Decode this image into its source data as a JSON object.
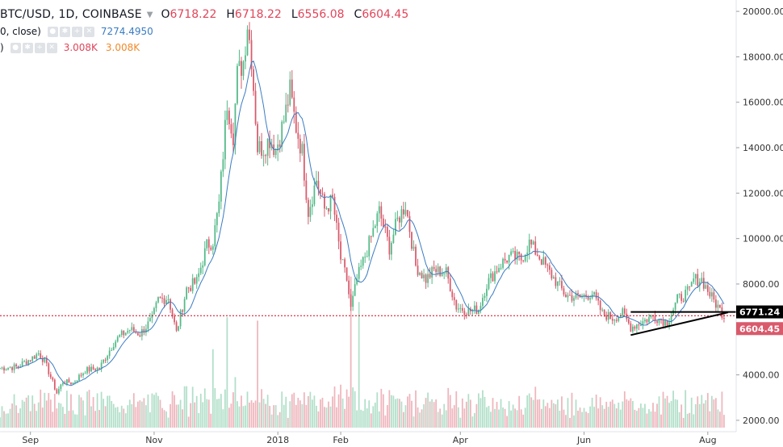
{
  "header": {
    "symbol": "BTC/USD, 1D, COINBASE",
    "open_key": "O",
    "open": "6718.22",
    "high_key": "H",
    "high": "6718.22",
    "low_key": "L",
    "low": "6556.08",
    "close_key": "C",
    "close": "6604.45"
  },
  "ma_indicator": {
    "label": "0, close)",
    "value": "7274.4950"
  },
  "volume_indicator": {
    "label": ")",
    "value1": "3.008K",
    "value2": "3.008K"
  },
  "colors": {
    "up": "#53b987",
    "down": "#d95a6b",
    "ma": "#3a7cc2",
    "line": "#000000",
    "price_line": "#d0021b"
  },
  "chart_data": {
    "type": "candlestick",
    "y_range": [
      1500,
      20500
    ],
    "x_range": [
      "2017-08-17",
      "2018-08-15"
    ],
    "y_ticks": [
      "2000.00",
      "4000.00",
      "6000.00",
      "8000.00",
      "10000.00",
      "12000.00",
      "14000.00",
      "16000.00",
      "18000.00",
      "20000.00"
    ],
    "x_ticks": [
      {
        "label": "Sep",
        "date": "2017-09-01"
      },
      {
        "label": "Nov",
        "date": "2017-11-01"
      },
      {
        "label": "2018",
        "date": "2018-01-01"
      },
      {
        "label": "Feb",
        "date": "2018-02-01"
      },
      {
        "label": "Apr",
        "date": "2018-04-01"
      },
      {
        "label": "Jun",
        "date": "2018-06-01"
      },
      {
        "label": "Aug",
        "date": "2018-08-01"
      }
    ],
    "close_path": [
      [
        "2017-08-17",
        4300
      ],
      [
        "2017-08-25",
        4350
      ],
      [
        "2017-09-01",
        4700
      ],
      [
        "2017-09-05",
        4950
      ],
      [
        "2017-09-08",
        4600
      ],
      [
        "2017-09-14",
        3200
      ],
      [
        "2017-09-17",
        3700
      ],
      [
        "2017-09-22",
        3650
      ],
      [
        "2017-09-28",
        4200
      ],
      [
        "2017-10-05",
        4300
      ],
      [
        "2017-10-12",
        5400
      ],
      [
        "2017-10-15",
        5700
      ],
      [
        "2017-10-20",
        6000
      ],
      [
        "2017-10-25",
        5800
      ],
      [
        "2017-10-31",
        6450
      ],
      [
        "2017-11-03",
        7300
      ],
      [
        "2017-11-08",
        7400
      ],
      [
        "2017-11-12",
        5850
      ],
      [
        "2017-11-17",
        7800
      ],
      [
        "2017-11-22",
        8100
      ],
      [
        "2017-11-27",
        9700
      ],
      [
        "2017-11-30",
        9900
      ],
      [
        "2017-12-03",
        11500
      ],
      [
        "2017-12-07",
        16000
      ],
      [
        "2017-12-10",
        14600
      ],
      [
        "2017-12-12",
        17200
      ],
      [
        "2017-12-15",
        17800
      ],
      [
        "2017-12-17",
        19500
      ],
      [
        "2017-12-19",
        18000
      ],
      [
        "2017-12-22",
        14000
      ],
      [
        "2017-12-25",
        14000
      ],
      [
        "2017-12-28",
        14400
      ],
      [
        "2017-12-31",
        13900
      ],
      [
        "2018-01-04",
        15200
      ],
      [
        "2018-01-07",
        16500
      ],
      [
        "2018-01-10",
        14900
      ],
      [
        "2018-01-13",
        13800
      ],
      [
        "2018-01-16",
        11200
      ],
      [
        "2018-01-20",
        12600
      ],
      [
        "2018-01-24",
        11300
      ],
      [
        "2018-01-28",
        11700
      ],
      [
        "2018-02-01",
        9100
      ],
      [
        "2018-02-04",
        8200
      ],
      [
        "2018-02-06",
        6900
      ],
      [
        "2018-02-09",
        8200
      ],
      [
        "2018-02-14",
        9500
      ],
      [
        "2018-02-20",
        11200
      ],
      [
        "2018-02-25",
        9600
      ],
      [
        "2018-03-01",
        10800
      ],
      [
        "2018-03-05",
        11500
      ],
      [
        "2018-03-10",
        8800
      ],
      [
        "2018-03-15",
        8200
      ],
      [
        "2018-03-19",
        8600
      ],
      [
        "2018-03-25",
        8500
      ],
      [
        "2018-03-30",
        7000
      ],
      [
        "2018-04-05",
        6800
      ],
      [
        "2018-04-10",
        6900
      ],
      [
        "2018-04-14",
        8000
      ],
      [
        "2018-04-20",
        8800
      ],
      [
        "2018-04-25",
        9200
      ],
      [
        "2018-05-01",
        9100
      ],
      [
        "2018-05-05",
        9800
      ],
      [
        "2018-05-10",
        9200
      ],
      [
        "2018-05-15",
        8500
      ],
      [
        "2018-05-23",
        7500
      ],
      [
        "2018-05-30",
        7400
      ],
      [
        "2018-06-05",
        7600
      ],
      [
        "2018-06-10",
        6700
      ],
      [
        "2018-06-15",
        6500
      ],
      [
        "2018-06-20",
        6700
      ],
      [
        "2018-06-24",
        6100
      ],
      [
        "2018-06-29",
        6300
      ],
      [
        "2018-07-05",
        6600
      ],
      [
        "2018-07-12",
        6300
      ],
      [
        "2018-07-17",
        7300
      ],
      [
        "2018-07-23",
        7700
      ],
      [
        "2018-07-25",
        8200
      ],
      [
        "2018-07-29",
        8200
      ],
      [
        "2018-08-03",
        7400
      ],
      [
        "2018-08-06",
        7000
      ],
      [
        "2018-08-09",
        6600
      ]
    ],
    "volume_level": 0.35,
    "ma_lag_days": 8,
    "current_price": "6604.45",
    "horizontal_line": {
      "value": 6771.24,
      "label": "6771.24",
      "from": "2018-06-24"
    },
    "trendline": {
      "from": [
        "2018-06-24",
        5750
      ],
      "to": [
        "2018-08-11",
        6750
      ]
    },
    "volume_spikes": [
      [
        "2017-11-30",
        0.25
      ],
      [
        "2017-12-07",
        0.35
      ],
      [
        "2017-12-22",
        0.3
      ],
      [
        "2018-02-06",
        0.5
      ],
      [
        "2018-02-10",
        0.38
      ]
    ]
  }
}
